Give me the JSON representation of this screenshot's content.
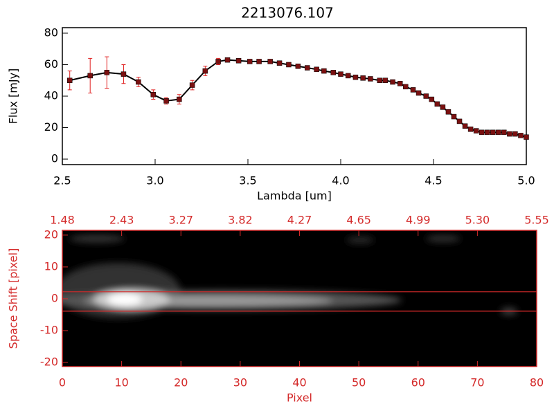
{
  "chart_data": [
    {
      "type": "line",
      "title": "2213076.107",
      "xlabel": "Lambda [um]",
      "ylabel": "Flux [mJy]",
      "x": [
        2.54,
        2.65,
        2.74,
        2.83,
        2.91,
        2.99,
        3.06,
        3.13,
        3.2,
        3.27,
        3.34,
        3.39,
        3.45,
        3.51,
        3.56,
        3.62,
        3.67,
        3.72,
        3.77,
        3.82,
        3.87,
        3.91,
        3.96,
        4.0,
        4.04,
        4.08,
        4.12,
        4.16,
        4.21,
        4.24,
        4.28,
        4.32,
        4.35,
        4.39,
        4.42,
        4.46,
        4.49,
        4.52,
        4.55,
        4.58,
        4.61,
        4.64,
        4.67,
        4.7,
        4.73,
        4.76,
        4.79,
        4.82,
        4.85,
        4.88,
        4.91,
        4.94,
        4.97,
        5.0
      ],
      "values": [
        50,
        53,
        55,
        54,
        49,
        41,
        37,
        38,
        47,
        56,
        62,
        63,
        62.5,
        62,
        62,
        62,
        61,
        60,
        59,
        58,
        57,
        56,
        55,
        54,
        53,
        52,
        51.5,
        51,
        50,
        50,
        49,
        48,
        46,
        44,
        42,
        40,
        38,
        35,
        33,
        30,
        27,
        24,
        21,
        19,
        18,
        17,
        17,
        17,
        17,
        17,
        16,
        16,
        15,
        14
      ],
      "errors": [
        6,
        11,
        10,
        6,
        3,
        3,
        2,
        3,
        3,
        3,
        2,
        1,
        0.5,
        0.5,
        0.5,
        0.5,
        0.5,
        0.5,
        0.5,
        0.5,
        0.5,
        0.5,
        0.5,
        0.5,
        0.5,
        0.5,
        0.5,
        0.5,
        0.5,
        0.5,
        0.5,
        0.5,
        0.5,
        0.5,
        0.5,
        0.5,
        0.5,
        0.5,
        0.5,
        0.5,
        0.5,
        0.5,
        0.5,
        0.5,
        0.5,
        0.5,
        0.5,
        0.5,
        0.5,
        0.5,
        0.5,
        0.5,
        0.5,
        0.5
      ],
      "color": "#000000",
      "marker_color": "#7a1010",
      "error_color": "#e02020",
      "xlim": [
        2.5,
        5.0
      ],
      "ylim": [
        -3.5,
        83.5
      ],
      "xticks": [
        2.5,
        {
          "value": 3,
          "label": "3.0"
        },
        3.5,
        {
          "value": 4,
          "label": "4.0"
        },
        4.5,
        {
          "value": 5,
          "label": "5.0"
        }
      ],
      "yticks": [
        0,
        20,
        40,
        60,
        80
      ]
    },
    {
      "type": "image",
      "xlabel": "Pixel",
      "ylabel": "Space Shift [pixel]",
      "color": "#d42a2a",
      "xlim": [
        0,
        80
      ],
      "ylim": [
        -21.3,
        21.5
      ],
      "xticks": [
        0,
        10,
        20,
        30,
        40,
        50,
        60,
        70,
        80
      ],
      "yticks": [
        -20,
        -10,
        0,
        10,
        20
      ],
      "x2ticks": [
        {
          "value": 0,
          "label": "1.48"
        },
        {
          "value": 10,
          "label": "2.43"
        },
        {
          "value": 20,
          "label": "3.27"
        },
        {
          "value": 30,
          "label": "3.82"
        },
        {
          "value": 40,
          "label": "4.27"
        },
        {
          "value": 50,
          "label": "4.65"
        },
        {
          "value": 60,
          "label": "4.99"
        },
        {
          "value": 70,
          "label": "5.30"
        },
        {
          "value": 80,
          "label": "5.55"
        }
      ],
      "hlines": [
        2.2,
        -3.9
      ]
    }
  ]
}
